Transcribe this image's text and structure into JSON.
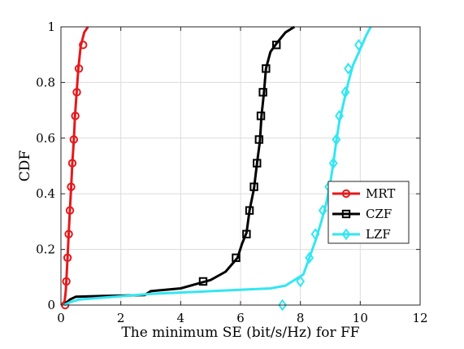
{
  "chart_data": {
    "type": "line",
    "title": "",
    "xlabel": "The minimum SE (bit/s/Hz) for FF",
    "ylabel": "CDF",
    "xlim": [
      0,
      12
    ],
    "ylim": [
      0,
      1
    ],
    "xticks": [
      "0",
      "2",
      "4",
      "6",
      "8",
      "10",
      "12"
    ],
    "yticks": [
      "0",
      "0.2",
      "0.4",
      "0.6",
      "0.8",
      "1"
    ],
    "grid": true,
    "legend_position": "center-right",
    "series": [
      {
        "name": "MRT",
        "color": "#e31a1c",
        "marker": "circle",
        "points": [
          [
            0.1,
            0.0
          ],
          [
            0.13,
            0.02
          ],
          [
            0.16,
            0.05
          ],
          [
            0.18,
            0.085
          ],
          [
            0.22,
            0.17
          ],
          [
            0.26,
            0.26
          ],
          [
            0.3,
            0.34
          ],
          [
            0.34,
            0.42
          ],
          [
            0.38,
            0.51
          ],
          [
            0.43,
            0.59
          ],
          [
            0.47,
            0.68
          ],
          [
            0.52,
            0.76
          ],
          [
            0.58,
            0.85
          ],
          [
            0.66,
            0.93
          ],
          [
            0.78,
            0.98
          ],
          [
            0.9,
            1.0
          ]
        ],
        "marker_points": [
          [
            0.14,
            0.0
          ],
          [
            0.18,
            0.085
          ],
          [
            0.22,
            0.17
          ],
          [
            0.26,
            0.255
          ],
          [
            0.3,
            0.34
          ],
          [
            0.34,
            0.425
          ],
          [
            0.38,
            0.51
          ],
          [
            0.43,
            0.595
          ],
          [
            0.48,
            0.68
          ],
          [
            0.53,
            0.765
          ],
          [
            0.6,
            0.85
          ],
          [
            0.74,
            0.935
          ]
        ]
      },
      {
        "name": "CZF",
        "color": "#000000",
        "marker": "square",
        "points": [
          [
            0.1,
            0.0
          ],
          [
            0.3,
            0.02
          ],
          [
            0.5,
            0.03
          ],
          [
            1.5,
            0.033
          ],
          [
            2.8,
            0.036
          ],
          [
            3.0,
            0.05
          ],
          [
            4.0,
            0.06
          ],
          [
            5.0,
            0.09
          ],
          [
            5.5,
            0.12
          ],
          [
            5.9,
            0.17
          ],
          [
            6.05,
            0.22
          ],
          [
            6.2,
            0.26
          ],
          [
            6.3,
            0.34
          ],
          [
            6.45,
            0.42
          ],
          [
            6.55,
            0.51
          ],
          [
            6.65,
            0.59
          ],
          [
            6.7,
            0.68
          ],
          [
            6.78,
            0.76
          ],
          [
            6.85,
            0.85
          ],
          [
            7.0,
            0.91
          ],
          [
            7.2,
            0.94
          ],
          [
            7.5,
            0.98
          ],
          [
            7.8,
            1.0
          ]
        ],
        "marker_points": [
          [
            4.75,
            0.085
          ],
          [
            5.85,
            0.17
          ],
          [
            6.2,
            0.255
          ],
          [
            6.3,
            0.34
          ],
          [
            6.45,
            0.425
          ],
          [
            6.55,
            0.51
          ],
          [
            6.62,
            0.595
          ],
          [
            6.68,
            0.68
          ],
          [
            6.75,
            0.765
          ],
          [
            6.85,
            0.85
          ],
          [
            7.2,
            0.935
          ]
        ]
      },
      {
        "name": "LZF",
        "color": "#33e6f2",
        "marker": "diamond",
        "points": [
          [
            0.1,
            0.0
          ],
          [
            0.3,
            0.01
          ],
          [
            0.6,
            0.02
          ],
          [
            3.0,
            0.04
          ],
          [
            7.0,
            0.06
          ],
          [
            7.5,
            0.07
          ],
          [
            8.1,
            0.11
          ],
          [
            8.3,
            0.17
          ],
          [
            8.5,
            0.23
          ],
          [
            8.7,
            0.3
          ],
          [
            8.85,
            0.36
          ],
          [
            9.0,
            0.44
          ],
          [
            9.1,
            0.51
          ],
          [
            9.2,
            0.59
          ],
          [
            9.3,
            0.66
          ],
          [
            9.45,
            0.73
          ],
          [
            9.6,
            0.8
          ],
          [
            9.75,
            0.86
          ],
          [
            10.0,
            0.92
          ],
          [
            10.2,
            0.97
          ],
          [
            10.35,
            1.0
          ]
        ],
        "marker_points": [
          [
            7.4,
            0.0
          ],
          [
            8.0,
            0.085
          ],
          [
            8.3,
            0.17
          ],
          [
            8.5,
            0.255
          ],
          [
            8.75,
            0.34
          ],
          [
            8.95,
            0.425
          ],
          [
            9.1,
            0.51
          ],
          [
            9.2,
            0.595
          ],
          [
            9.3,
            0.68
          ],
          [
            9.5,
            0.765
          ],
          [
            9.6,
            0.85
          ],
          [
            9.95,
            0.935
          ]
        ]
      }
    ]
  }
}
